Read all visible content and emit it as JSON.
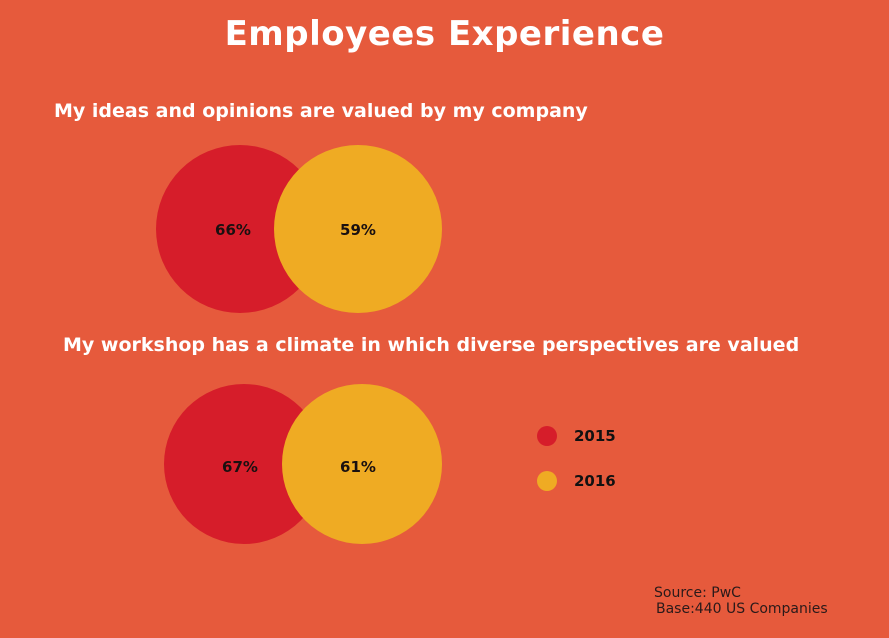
{
  "title": "Employees Experience",
  "colors": {
    "background": "#e65a3c",
    "2015": "#d61d2a",
    "2016": "#efab23"
  },
  "chart_data": [
    {
      "type": "venn",
      "title": "My ideas and opinions are valued by my company",
      "series": [
        {
          "name": "2015",
          "value": 66,
          "label": "66%"
        },
        {
          "name": "2016",
          "value": 59,
          "label": "59%"
        }
      ]
    },
    {
      "type": "venn",
      "title": "My workshop has a climate in which diverse perspectives are valued",
      "series": [
        {
          "name": "2015",
          "value": 67,
          "label": "67%"
        },
        {
          "name": "2016",
          "value": 61,
          "label": "61%"
        }
      ]
    }
  ],
  "legend": [
    {
      "label": "2015"
    },
    {
      "label": "2016"
    }
  ],
  "source": {
    "line1": "Source: PwC",
    "line2": "Base:440 US Companies"
  }
}
